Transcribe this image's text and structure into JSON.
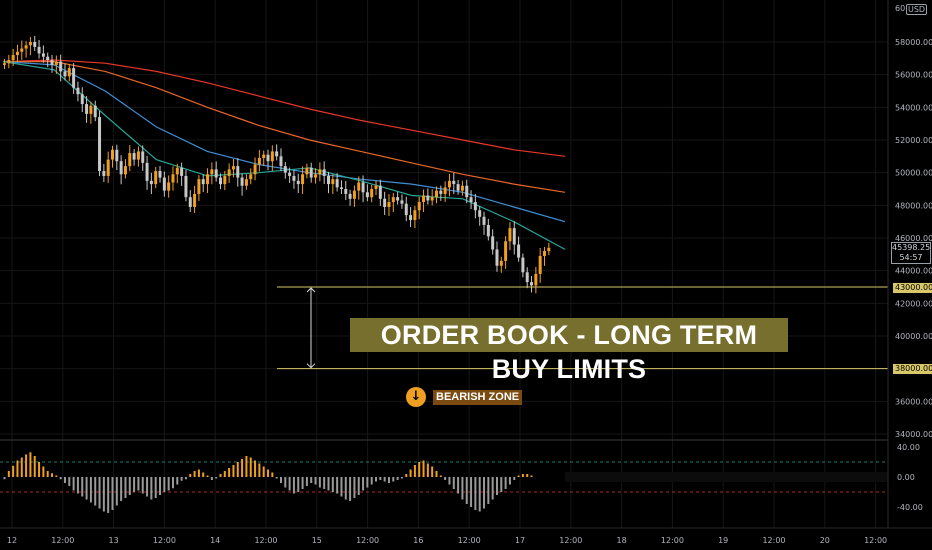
{
  "chart_data": {
    "type": "candlestick",
    "currency": "USD",
    "price_axis": {
      "ylim": [
        33500,
        60500
      ],
      "ticks": [
        "58000.00",
        "56000.00",
        "54000.00",
        "52000.00",
        "50000.00",
        "48000.00",
        "46000.00",
        "44000.00",
        "42000.00",
        "40000.00",
        "38000.00",
        "36000.00",
        "34000.00"
      ],
      "top_tick_partial": "60"
    },
    "time_axis": {
      "labels": [
        "12",
        "12:00",
        "13",
        "12:00",
        "14",
        "12:00",
        "15",
        "12:00",
        "16",
        "12:00",
        "17",
        "12:00",
        "18",
        "12:00",
        "19",
        "12:00",
        "20",
        "12:00"
      ]
    },
    "last_price": "45398.25",
    "countdown": "54:57",
    "levels": [
      {
        "label": "43000.00",
        "value": 43000
      },
      {
        "label": "38000.00",
        "value": 38000
      }
    ],
    "candles_close": [
      56700,
      56900,
      57200,
      57400,
      57600,
      57800,
      58000,
      57700,
      57300,
      57100,
      56900,
      56600,
      56800,
      56200,
      55900,
      56400,
      55200,
      54800,
      54200,
      53600,
      54100,
      53400,
      50100,
      49800,
      50800,
      51400,
      50700,
      49900,
      50400,
      51200,
      50800,
      51300,
      50600,
      49500,
      49300,
      50100,
      49700,
      48900,
      49400,
      49900,
      50300,
      49800,
      48500,
      47900,
      48700,
      49600,
      49300,
      49900,
      50200,
      49700,
      49300,
      49800,
      50200,
      50400,
      49700,
      49200,
      49600,
      49900,
      50500,
      50900,
      51100,
      50700,
      51300,
      51000,
      50400,
      50000,
      49800,
      49500,
      49300,
      49900,
      50300,
      49700,
      49900,
      50200,
      49800,
      49300,
      49600,
      49100,
      49000,
      48700,
      48400,
      48900,
      49400,
      48800,
      48500,
      49000,
      49200,
      48400,
      47900,
      48200,
      48500,
      48300,
      48100,
      47400,
      47100,
      47700,
      48200,
      48600,
      48300,
      48500,
      48900,
      48700,
      49100,
      49500,
      49300,
      48900,
      49200,
      48500,
      48200,
      47700,
      47300,
      46800,
      46100,
      45300,
      44300,
      44600,
      45800,
      46600,
      45600,
      44800,
      43900,
      43300,
      43100,
      43800,
      44900,
      45200,
      45400
    ],
    "moving_averages": [
      {
        "color": "#e8372a",
        "values": [
          56800,
          56900,
          56700,
          56200,
          55500,
          54700,
          53900,
          53200,
          52600,
          52000,
          51400,
          51000
        ]
      },
      {
        "color": "#e8672a",
        "values": [
          56800,
          56800,
          56200,
          55200,
          54000,
          52900,
          52000,
          51300,
          50600,
          49900,
          49300,
          48800
        ]
      },
      {
        "color": "#3f8fd6",
        "values": [
          56800,
          56600,
          55000,
          52800,
          51300,
          50500,
          50000,
          49600,
          49300,
          48800,
          47900,
          47000
        ]
      },
      {
        "color": "#26a69a",
        "values": [
          56800,
          56300,
          53500,
          50800,
          49800,
          50000,
          50300,
          49500,
          48600,
          48400,
          47000,
          45300
        ]
      }
    ],
    "oscillator": {
      "ylim": [
        -60,
        40
      ],
      "ticks": [
        "40.00",
        "0.00",
        "-40.00"
      ],
      "values": [
        -3,
        8,
        15,
        22,
        26,
        30,
        33,
        28,
        20,
        14,
        8,
        5,
        2,
        -3,
        -8,
        -12,
        -18,
        -22,
        -26,
        -30,
        -34,
        -38,
        -42,
        -46,
        -48,
        -44,
        -38,
        -32,
        -28,
        -24,
        -20,
        -18,
        -22,
        -26,
        -30,
        -28,
        -24,
        -20,
        -18,
        -15,
        -10,
        -5,
        -3,
        4,
        8,
        10,
        6,
        2,
        -4,
        -2,
        4,
        8,
        12,
        16,
        20,
        24,
        28,
        26,
        22,
        18,
        14,
        10,
        6,
        -2,
        -8,
        -14,
        -18,
        -22,
        -20,
        -16,
        -12,
        -8,
        -10,
        -14,
        -16,
        -18,
        -20,
        -22,
        -26,
        -30,
        -32,
        -28,
        -24,
        -18,
        -14,
        -10,
        -6,
        -4,
        -6,
        -8,
        -6,
        -4,
        -2,
        4,
        10,
        16,
        20,
        22,
        18,
        14,
        8,
        2,
        -4,
        -10,
        -16,
        -22,
        -30,
        -36,
        -40,
        -44,
        -46,
        -42,
        -36,
        -30,
        -24,
        -20,
        -16,
        -10,
        -4,
        2,
        4,
        4,
        2
      ],
      "dashed_levels": [
        {
          "value": 20,
          "color": "#26a69a"
        },
        {
          "value": -20,
          "color": "#e8372a"
        }
      ]
    },
    "annotations": {
      "banner": "ORDER BOOK - LONG TERM BUY LIMITS",
      "zone_label": "BEARISH ZONE"
    }
  },
  "colors": {
    "up": "#f0a020",
    "down": "#c8c8c8",
    "level_line": "#d9c86a",
    "grid": "#161616",
    "banner_bg": "#776f2d"
  }
}
